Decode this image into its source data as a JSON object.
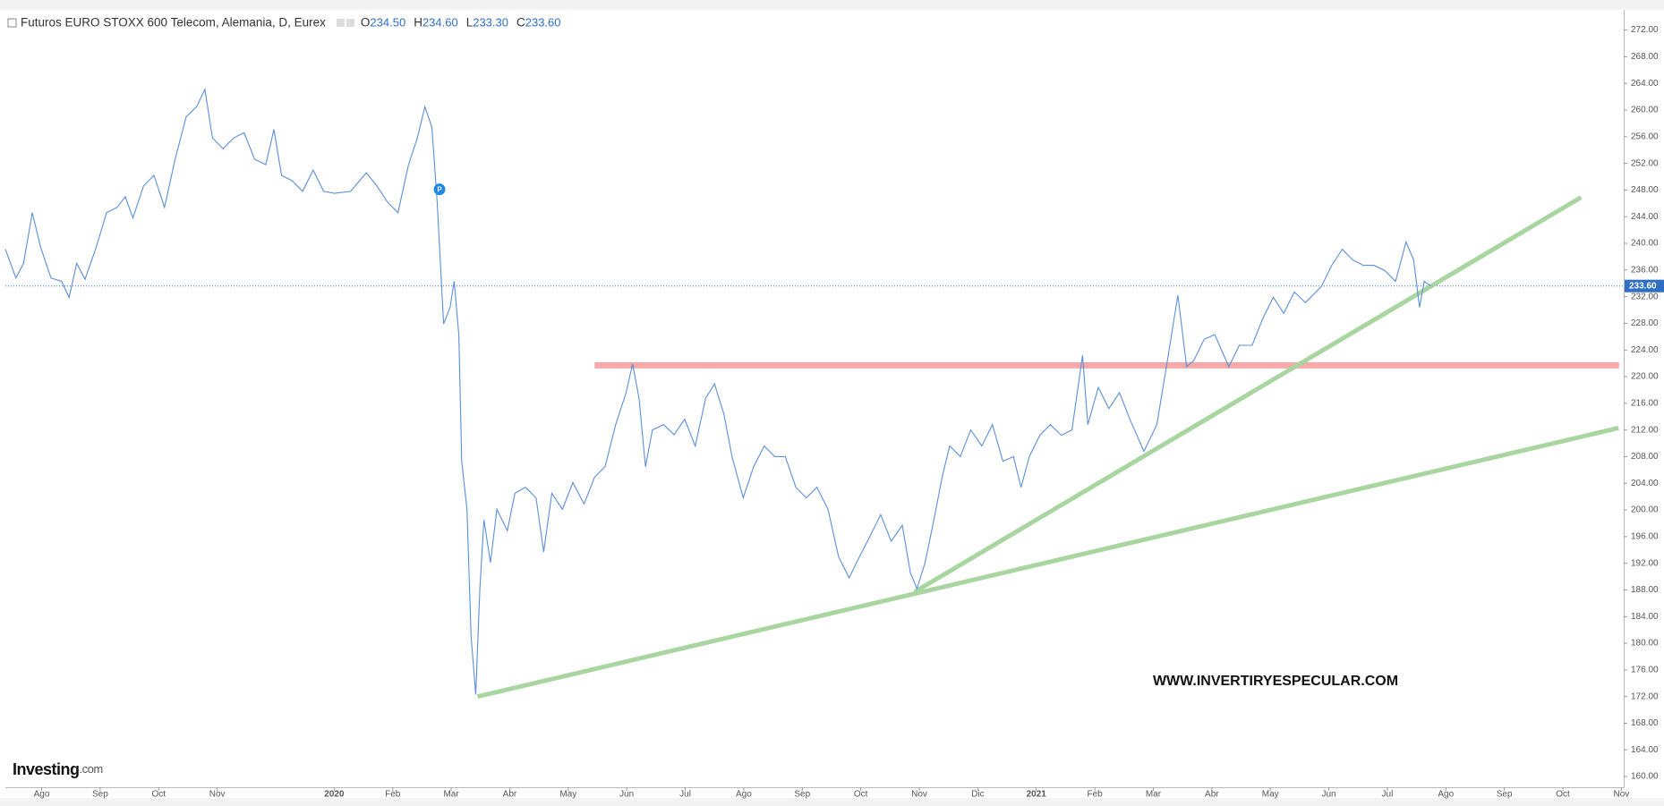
{
  "chart_data": {
    "type": "line",
    "title": "Futuros EURO STOXX 600 Telecom, Alemania, D, Eurex",
    "ohlc": [
      {
        "name": "O",
        "label": "234.50"
      },
      {
        "name": "H",
        "label": "234.60"
      },
      {
        "name": "L",
        "label": "233.30"
      },
      {
        "name": "C",
        "label": "233.60"
      }
    ],
    "watermark": "WWW.INVERTIRYESPECULAR.COM",
    "logo": "Investing",
    "logo_suffix": ".com",
    "marker_label": "P",
    "marker": {
      "x": 6.8,
      "value": 248.1
    },
    "last_price": {
      "value": 233.6,
      "label": "233.60"
    },
    "xlim": [
      -0.62,
      27.04
    ],
    "ylim": [
      158.4,
      274.9
    ],
    "xticks": [
      {
        "value": 0,
        "label": "Ago"
      },
      {
        "value": 1,
        "label": "Sep"
      },
      {
        "value": 2,
        "label": "Oct"
      },
      {
        "value": 3,
        "label": "Nov"
      },
      {
        "value": 5,
        "label": "2020"
      },
      {
        "value": 6,
        "label": "Feb"
      },
      {
        "value": 7,
        "label": "Mar"
      },
      {
        "value": 8,
        "label": "Abr"
      },
      {
        "value": 9,
        "label": "May"
      },
      {
        "value": 10,
        "label": "Jun"
      },
      {
        "value": 11,
        "label": "Jul"
      },
      {
        "value": 12,
        "label": "Ago"
      },
      {
        "value": 13,
        "label": "Sep"
      },
      {
        "value": 14,
        "label": "Oct"
      },
      {
        "value": 15,
        "label": "Nov"
      },
      {
        "value": 16,
        "label": "Dic"
      },
      {
        "value": 17,
        "label": "2021"
      },
      {
        "value": 18,
        "label": "Feb"
      },
      {
        "value": 19,
        "label": "Mar"
      },
      {
        "value": 20,
        "label": "Abr"
      },
      {
        "value": 21,
        "label": "May"
      },
      {
        "value": 22,
        "label": "Jun"
      },
      {
        "value": 23,
        "label": "Jul"
      },
      {
        "value": 24,
        "label": "Ago"
      },
      {
        "value": 25,
        "label": "Sep"
      },
      {
        "value": 26,
        "label": "Oct"
      },
      {
        "value": 27,
        "label": "Nov"
      }
    ],
    "yticks": [
      {
        "value": 160,
        "label": "160.00"
      },
      {
        "value": 164,
        "label": "164.00"
      },
      {
        "value": 168,
        "label": "168.00"
      },
      {
        "value": 172,
        "label": "172.00"
      },
      {
        "value": 176,
        "label": "176.00"
      },
      {
        "value": 180,
        "label": "180.00"
      },
      {
        "value": 184,
        "label": "184.00"
      },
      {
        "value": 188,
        "label": "188.00"
      },
      {
        "value": 192,
        "label": "192.00"
      },
      {
        "value": 196,
        "label": "196.00"
      },
      {
        "value": 200,
        "label": "200.00"
      },
      {
        "value": 204,
        "label": "204.00"
      },
      {
        "value": 208,
        "label": "208.00"
      },
      {
        "value": 212,
        "label": "212.00"
      },
      {
        "value": 216,
        "label": "216.00"
      },
      {
        "value": 220,
        "label": "220.00"
      },
      {
        "value": 224,
        "label": "224.00"
      },
      {
        "value": 228,
        "label": "228.00"
      },
      {
        "value": 232,
        "label": "232.00"
      },
      {
        "value": 236,
        "label": "236.00"
      },
      {
        "value": 240,
        "label": "240.00"
      },
      {
        "value": 244,
        "label": "244.00"
      },
      {
        "value": 248,
        "label": "248.00"
      },
      {
        "value": 252,
        "label": "252.00"
      },
      {
        "value": 256,
        "label": "256.00"
      },
      {
        "value": 260,
        "label": "260.00"
      },
      {
        "value": 264,
        "label": "264.00"
      },
      {
        "value": 268,
        "label": "268.00"
      },
      {
        "value": 272,
        "label": "272.00"
      }
    ],
    "grid": false,
    "x": [
      -0.62,
      -0.44,
      -0.31,
      -0.16,
      -0.02,
      0.16,
      0.34,
      0.47,
      0.6,
      0.74,
      0.92,
      1.11,
      1.29,
      1.43,
      1.56,
      1.74,
      1.92,
      2.1,
      2.28,
      2.47,
      2.65,
      2.79,
      2.92,
      3.1,
      3.28,
      3.46,
      3.64,
      3.83,
      3.97,
      4.1,
      4.28,
      4.46,
      4.64,
      4.82,
      5,
      5.28,
      5.55,
      5.73,
      5.91,
      6.09,
      6.27,
      6.42,
      6.55,
      6.67,
      6.76,
      6.87,
      6.98,
      7.05,
      7.13,
      7.18,
      7.27,
      7.34,
      7.42,
      7.49,
      7.56,
      7.67,
      7.78,
      7.96,
      8.09,
      8.27,
      8.45,
      8.58,
      8.72,
      8.9,
      9.08,
      9.27,
      9.45,
      9.63,
      9.81,
      9.99,
      10.1,
      10.21,
      10.32,
      10.44,
      10.63,
      10.81,
      10.99,
      11.17,
      11.35,
      11.5,
      11.66,
      11.8,
      11.99,
      12.17,
      12.35,
      12.53,
      12.71,
      12.89,
      13.07,
      13.25,
      13.44,
      13.62,
      13.8,
      13.98,
      14.16,
      14.34,
      14.52,
      14.71,
      14.85,
      14.96,
      15.1,
      15.25,
      15.39,
      15.52,
      15.7,
      15.88,
      16.07,
      16.25,
      16.43,
      16.61,
      16.74,
      16.88,
      17.06,
      17.24,
      17.43,
      17.61,
      17.79,
      17.88,
      18.06,
      18.24,
      18.42,
      18.6,
      18.84,
      19.06,
      19.24,
      19.42,
      19.57,
      19.69,
      19.87,
      20.05,
      20.29,
      20.47,
      20.69,
      20.87,
      21.05,
      21.23,
      21.41,
      21.6,
      21.87,
      22.05,
      22.23,
      22.41,
      22.59,
      22.77,
      22.96,
      23.14,
      23.32,
      23.45,
      23.55,
      23.63,
      23.74
    ],
    "series": [
      {
        "color": "#5b8fd9",
        "values": [
          239.1,
          234.8,
          237,
          244.6,
          239.5,
          234.8,
          234.3,
          231.9,
          237,
          234.6,
          239.1,
          244.6,
          245.4,
          247,
          243.8,
          248.6,
          250.2,
          245.4,
          252.6,
          259,
          260.5,
          263.1,
          255.8,
          254.2,
          255.8,
          256.6,
          252.6,
          251.8,
          257.1,
          250.2,
          249.4,
          247.8,
          251,
          247.8,
          247.5,
          247.8,
          250.6,
          248.6,
          246.2,
          244.6,
          251.8,
          255.8,
          260.5,
          257.4,
          246.2,
          227.9,
          230.4,
          234.3,
          226.3,
          207.3,
          200.1,
          181,
          172.3,
          188.2,
          198.5,
          192.1,
          200.1,
          196.9,
          202.5,
          203.4,
          201.8,
          193.7,
          202.5,
          200.1,
          204.1,
          200.9,
          204.9,
          206.5,
          212.8,
          217.6,
          221.9,
          216.8,
          206.5,
          212,
          212.8,
          211.3,
          213.6,
          209.6,
          216.8,
          218.9,
          214.4,
          208,
          201.8,
          206.5,
          209.6,
          208,
          208,
          203.4,
          201.8,
          203.4,
          200.1,
          193,
          189.8,
          193,
          196.1,
          199.3,
          195.3,
          197.7,
          190.5,
          188.2,
          192.1,
          198.5,
          204.9,
          209.6,
          208,
          212,
          209.6,
          212.8,
          207.3,
          208,
          203.4,
          208,
          211.2,
          212.8,
          211.2,
          212,
          223.2,
          212.8,
          218.4,
          215.2,
          217.6,
          213.6,
          208.8,
          212.8,
          222.4,
          232.2,
          221.5,
          222.4,
          225.6,
          226.3,
          221.5,
          224.7,
          224.7,
          228.7,
          231.9,
          229.5,
          232.7,
          231.1,
          233.5,
          236.7,
          239.1,
          237.5,
          236.7,
          236.7,
          235.9,
          234.3,
          240.2,
          237.5,
          230.4,
          234.3,
          233.6
        ]
      }
    ],
    "trendlines": [
      {
        "color": "#f5a9a9",
        "x": [
          9.45,
          26.96
        ],
        "values": [
          221.7,
          221.7
        ]
      },
      {
        "color": "#a8d5a0",
        "x": [
          7.45,
          26.95
        ],
        "values": [
          172,
          212.3
        ]
      },
      {
        "color": "#a8d5a0",
        "x": [
          14.92,
          26.31
        ],
        "values": [
          187.7,
          246.9
        ]
      }
    ]
  }
}
